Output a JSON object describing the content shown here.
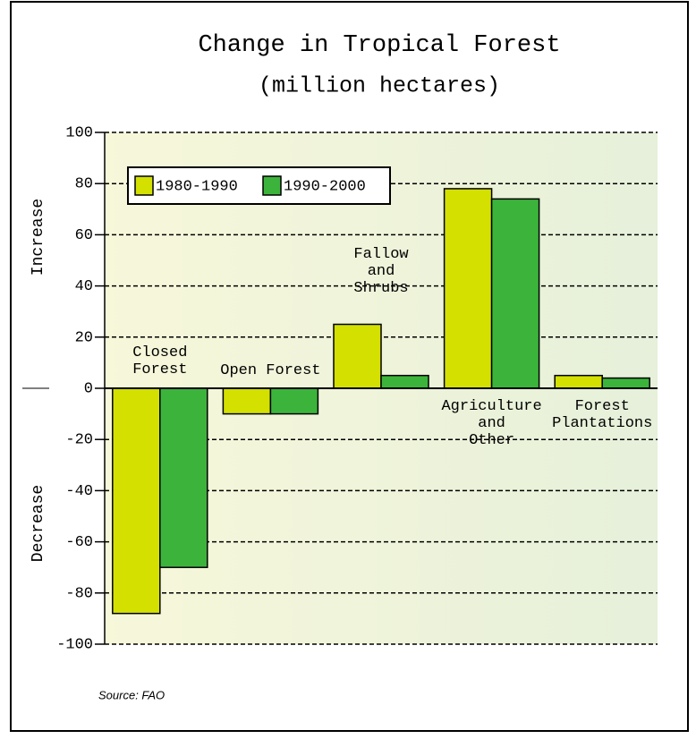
{
  "chart_data": {
    "type": "bar",
    "title": "Change in Tropical Forest",
    "subtitle": "(million hectares)",
    "y_label_top": "Increase",
    "y_label_bottom": "Decrease",
    "source": "Source: FAO",
    "categories": [
      "Closed\nForest",
      "Open Forest",
      "Fallow\nand\nShrubs",
      "Agriculture\nand\nOther",
      "Forest\nPlantations"
    ],
    "series": [
      {
        "name": "1980-1990",
        "color": "#d4e000",
        "values": [
          -88,
          -10,
          25,
          78,
          5
        ]
      },
      {
        "name": "1990-2000",
        "color": "#3cb43c",
        "values": [
          -70,
          -10,
          5,
          74,
          4
        ]
      }
    ],
    "ylim": [
      -100,
      100
    ],
    "yticks": [
      -100,
      -80,
      -60,
      -40,
      -20,
      0,
      20,
      40,
      60,
      80,
      100
    ],
    "grid": true
  }
}
